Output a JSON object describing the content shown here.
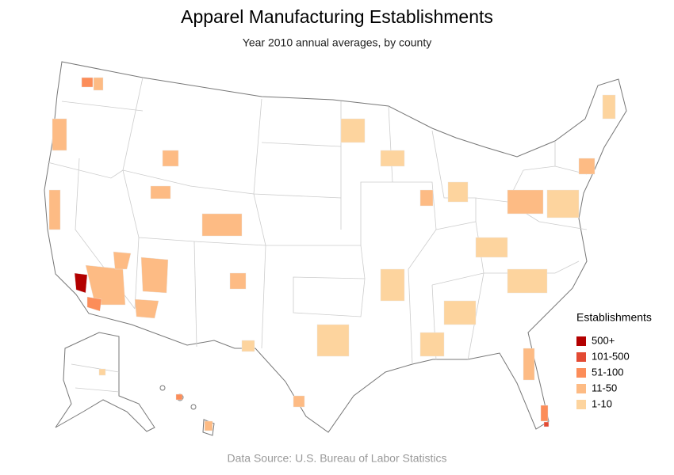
{
  "title": "Apparel Manufacturing Establishments",
  "subtitle": "Year 2010 annual averages, by county",
  "legend": {
    "title": "Establishments",
    "items": [
      {
        "label": "500+",
        "color": "#b30000"
      },
      {
        "label": "101-500",
        "color": "#e34a33"
      },
      {
        "label": "51-100",
        "color": "#fc8d59"
      },
      {
        "label": "11-50",
        "color": "#fdbb84"
      },
      {
        "label": "1-10",
        "color": "#fdd49e"
      }
    ]
  },
  "source": "Data Source: U.S. Bureau of Labor Statistics"
}
